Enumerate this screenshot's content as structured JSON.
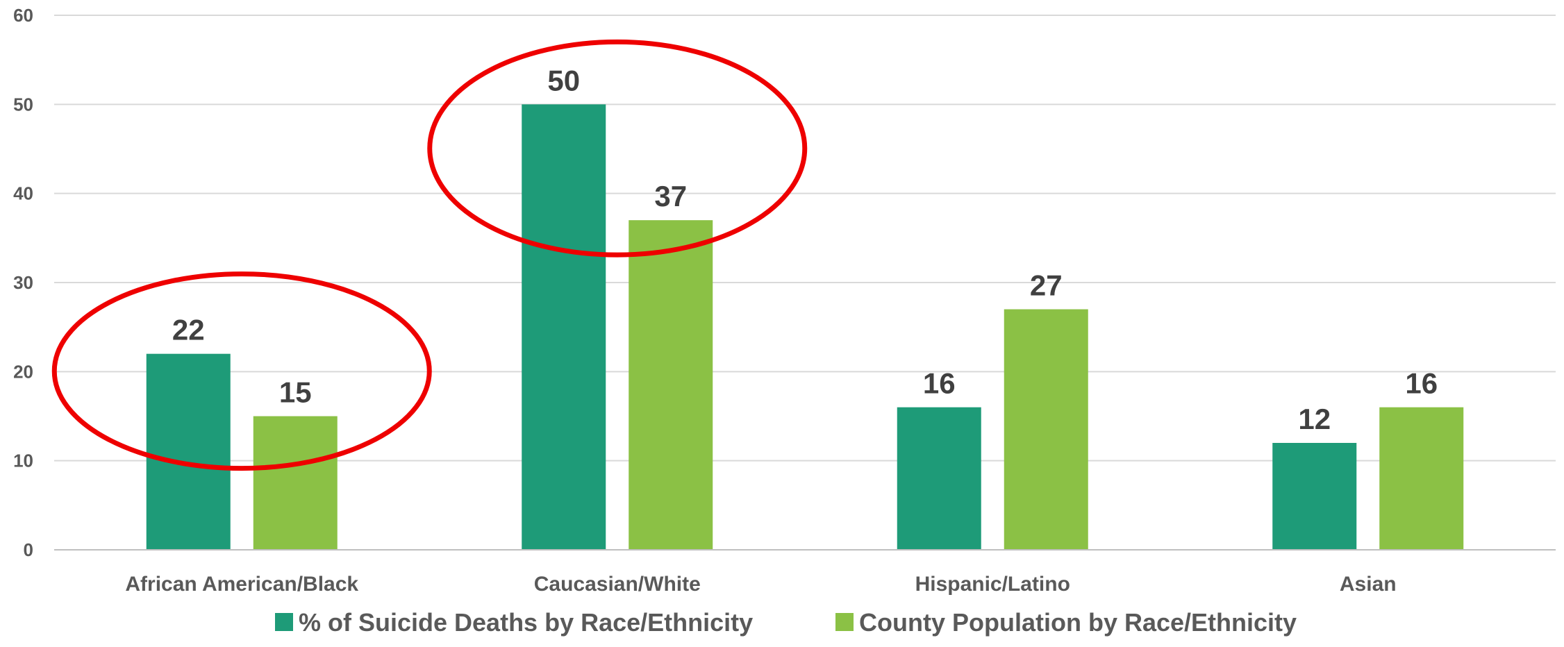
{
  "chart_data": {
    "type": "bar",
    "title": "",
    "xlabel": "",
    "ylabel": "",
    "ylim": [
      0,
      60
    ],
    "yticks": [
      0,
      10,
      20,
      30,
      40,
      50,
      60
    ],
    "grid": true,
    "legend_position": "bottom",
    "categories": [
      "African American/Black",
      "Caucasian/White",
      "Hispanic/Latino",
      "Asian"
    ],
    "series": [
      {
        "name": "% of Suicide Deaths by Race/Ethnicity",
        "color": "#1e9b78",
        "values": [
          22,
          50,
          16,
          12
        ]
      },
      {
        "name": "County Population by Race/Ethnicity",
        "color": "#8bc145",
        "values": [
          15,
          37,
          27,
          16
        ]
      }
    ],
    "annotations": [
      {
        "shape": "ellipse",
        "color": "#ee0000",
        "encircles_category": "African American/Black"
      },
      {
        "shape": "ellipse",
        "color": "#ee0000",
        "encircles_category": "Caucasian/White"
      }
    ]
  }
}
